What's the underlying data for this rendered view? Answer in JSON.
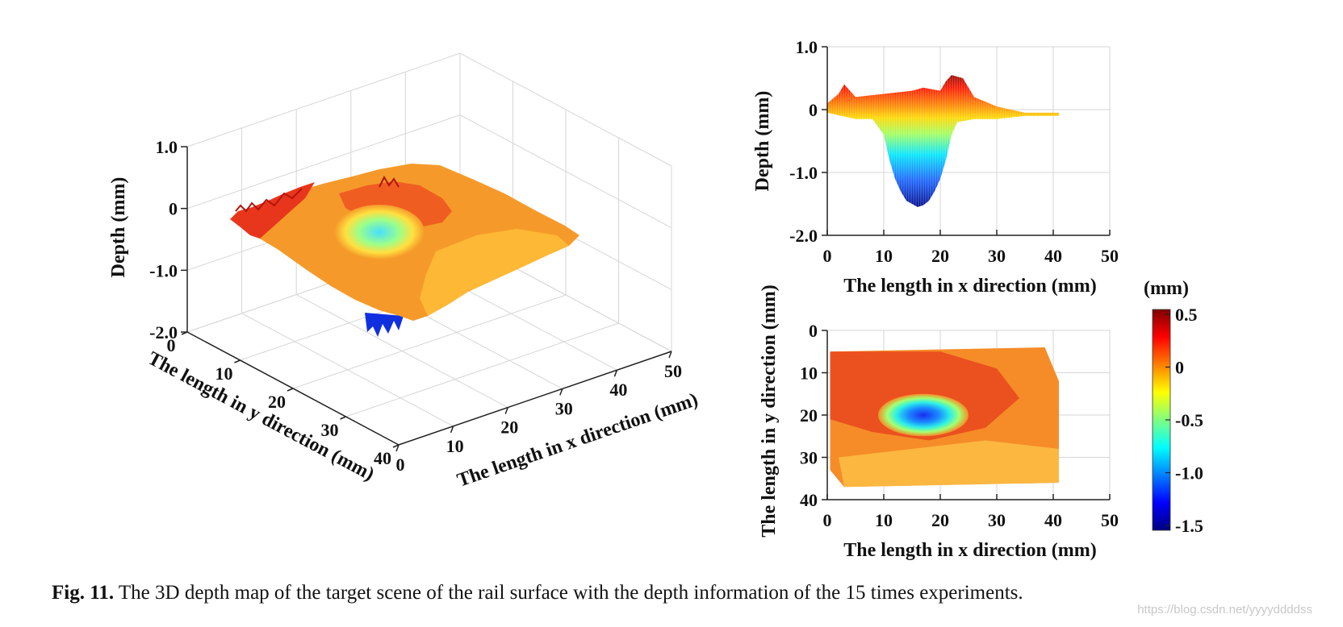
{
  "colors": {
    "colormap": [
      "#00007f",
      "#0000ff",
      "#007fff",
      "#00ffff",
      "#7fff7f",
      "#ffff00",
      "#ff7f00",
      "#ff0000",
      "#7f0000"
    ],
    "grid": "#d6d6d6",
    "axis": "#222222"
  },
  "chart_data": [
    {
      "id": "surface-3d",
      "type": "surface",
      "zlabel": "Depth (mm)",
      "xlabel": "The length in x direction (mm)",
      "ylabel": "The length in y direction (mm)",
      "xticks": [
        "0",
        "10",
        "20",
        "30",
        "40",
        "50"
      ],
      "yticks": [
        "0",
        "10",
        "20",
        "30",
        "40"
      ],
      "zticks": [
        "1.0",
        "0",
        "-1.0",
        "-2.0"
      ],
      "xlim": [
        0,
        50
      ],
      "ylim": [
        0,
        40
      ],
      "zlim": [
        -2.0,
        1.0
      ],
      "defect": {
        "x_center": 16,
        "y_center": 20,
        "min_depth": -1.55
      }
    },
    {
      "id": "side-profile",
      "type": "line",
      "xlabel": "The length in x direction (mm)",
      "ylabel": "Depth (mm)",
      "xticks": [
        "0",
        "10",
        "20",
        "30",
        "40",
        "50"
      ],
      "yticks": [
        "1.0",
        "0",
        "-1.0",
        "-2.0"
      ],
      "xlim": [
        0,
        50
      ],
      "ylim": [
        -2.0,
        1.0
      ],
      "upper_envelope": [
        [
          0,
          0.1
        ],
        [
          2,
          0.25
        ],
        [
          3,
          0.4
        ],
        [
          5,
          0.2
        ],
        [
          10,
          0.25
        ],
        [
          15,
          0.3
        ],
        [
          17,
          0.35
        ],
        [
          20,
          0.3
        ],
        [
          21,
          0.45
        ],
        [
          22,
          0.55
        ],
        [
          24,
          0.5
        ],
        [
          26,
          0.2
        ],
        [
          30,
          0.05
        ],
        [
          35,
          -0.05
        ],
        [
          41,
          -0.05
        ]
      ],
      "lower_envelope": [
        [
          0,
          -0.05
        ],
        [
          5,
          -0.15
        ],
        [
          8,
          -0.15
        ],
        [
          10,
          -0.4
        ],
        [
          11,
          -0.8
        ],
        [
          12,
          -1.1
        ],
        [
          13,
          -1.3
        ],
        [
          14,
          -1.45
        ],
        [
          15,
          -1.5
        ],
        [
          16,
          -1.55
        ],
        [
          17,
          -1.52
        ],
        [
          18,
          -1.45
        ],
        [
          19,
          -1.3
        ],
        [
          20,
          -1.1
        ],
        [
          21,
          -0.8
        ],
        [
          22,
          -0.4
        ],
        [
          23,
          -0.2
        ],
        [
          26,
          -0.15
        ],
        [
          30,
          -0.15
        ],
        [
          35,
          -0.1
        ],
        [
          41,
          -0.1
        ]
      ]
    },
    {
      "id": "top-view",
      "type": "heatmap",
      "xlabel": "The length in x direction (mm)",
      "ylabel": "The length in y direction (mm)",
      "xticks": [
        "0",
        "10",
        "20",
        "30",
        "40",
        "50"
      ],
      "yticks": [
        "0",
        "10",
        "20",
        "30",
        "40"
      ],
      "xlim": [
        0,
        50
      ],
      "ylim": [
        0,
        40
      ],
      "data_extent": {
        "x": [
          0,
          41
        ],
        "y": [
          4,
          37
        ]
      },
      "defect": {
        "x_center": 17,
        "y_center": 20,
        "min_depth": -1.5
      }
    },
    {
      "id": "colorbar",
      "type": "colorbar",
      "unit_label": "(mm)",
      "ticks": [
        "0.5",
        "0",
        "-0.5",
        "-1.0",
        "-1.5"
      ],
      "range": [
        -1.5,
        0.5
      ]
    }
  ],
  "caption": {
    "fig_id": "Fig. 11.",
    "text": "The 3D depth map of the target scene of the rail surface with the depth information of the 15 times experiments."
  },
  "watermark": "https://blog.csdn.net/yyyyddddss"
}
